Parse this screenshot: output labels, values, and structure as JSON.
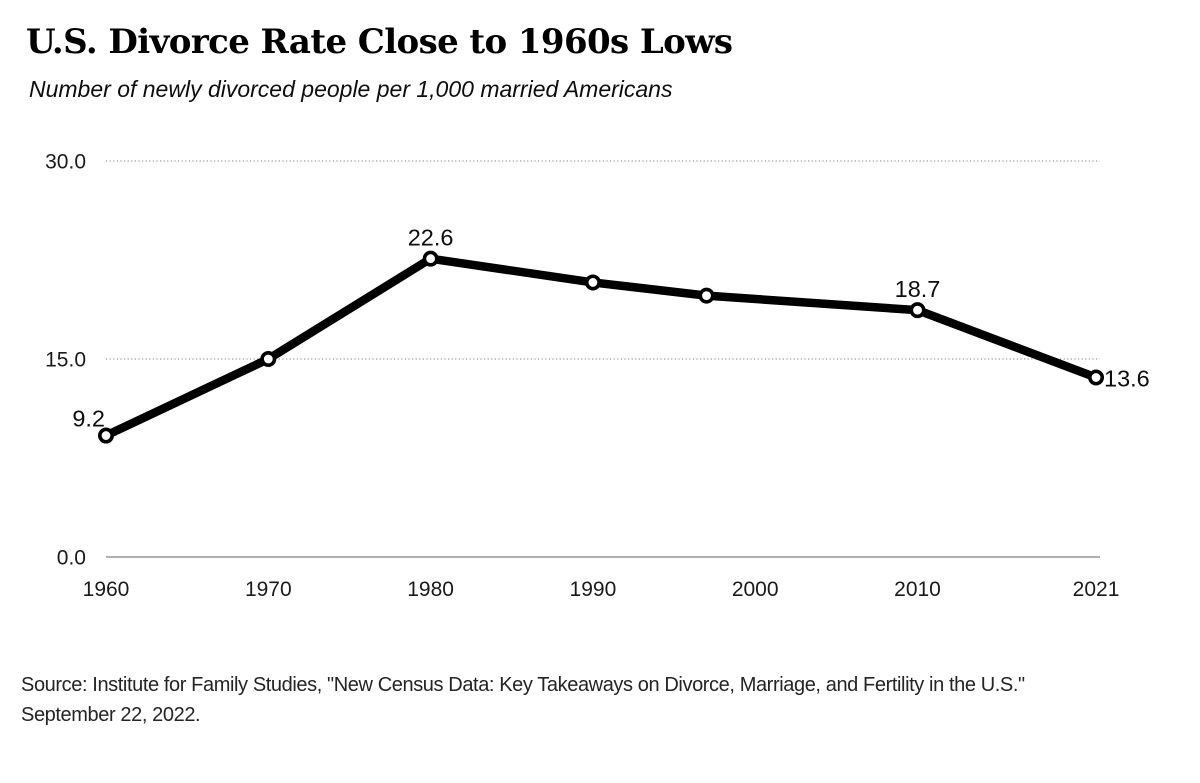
{
  "header": {
    "title": "U.S. Divorce Rate Close to 1960s Lows",
    "subtitle": "Number of newly divorced people per 1,000 married Americans"
  },
  "chart_data": {
    "type": "line",
    "title": "U.S. Divorce Rate Close to 1960s Lows",
    "subtitle": "Number of newly divorced people per 1,000 married Americans",
    "x": [
      1960,
      1970,
      1980,
      1990,
      1997,
      2010,
      2021
    ],
    "values": [
      9.2,
      15.0,
      22.6,
      20.8,
      19.8,
      18.7,
      13.6
    ],
    "point_labels": [
      {
        "x": 1960,
        "text": "9.2",
        "position": "upper-left"
      },
      {
        "x": 1980,
        "text": "22.6",
        "position": "above"
      },
      {
        "x": 2010,
        "text": "18.7",
        "position": "above"
      },
      {
        "x": 2021,
        "text": "13.6",
        "position": "right"
      }
    ],
    "x_ticks": [
      {
        "year": 1960,
        "label": "1960"
      },
      {
        "year": 1970,
        "label": "1970"
      },
      {
        "year": 1980,
        "label": "1980"
      },
      {
        "year": 1990,
        "label": "1990"
      },
      {
        "year": 2000,
        "label": "2000"
      },
      {
        "year": 2010,
        "label": "2010"
      },
      {
        "year": 2021,
        "label": "2021"
      }
    ],
    "y_ticks": [
      {
        "value": 0,
        "label": "0.0",
        "style": "solid-axis"
      },
      {
        "value": 15,
        "label": "15.0",
        "style": "dotted"
      },
      {
        "value": 30,
        "label": "30.0",
        "style": "dotted"
      }
    ],
    "ylim": [
      0,
      30
    ],
    "xlabel": "",
    "ylabel": "",
    "grid": "horizontal-dotted",
    "legend": "none",
    "line_color": "#000000",
    "marker": "open-circle-white-fill"
  },
  "footer": {
    "source_lines": [
      "Source: Institute for Family Studies, \"New Census Data: Key Takeaways on Divorce, Marriage, and Fertility in the U.S.\"",
      "September 22, 2022."
    ]
  },
  "colors": {
    "background": "#ffffff",
    "line": "#000000",
    "gridline": "#ababab",
    "axis_line": "#a6a6a6",
    "tick_text": "#1a1a1a",
    "source_text": "#242424"
  }
}
